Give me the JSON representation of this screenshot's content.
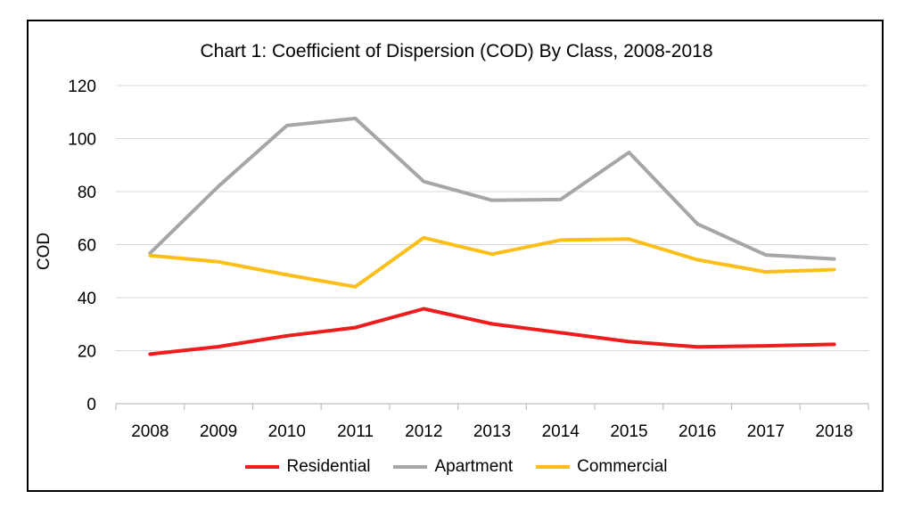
{
  "chart_data": {
    "type": "line",
    "title": "Chart 1:  Coefficient of Dispersion (COD) By Class, 2008-2018",
    "xlabel": "",
    "ylabel": "COD",
    "ylim": [
      0,
      120
    ],
    "yticks": [
      0,
      20,
      40,
      60,
      80,
      100,
      120
    ],
    "grid": true,
    "legend_position": "bottom",
    "categories": [
      "2008",
      "2009",
      "2010",
      "2011",
      "2012",
      "2013",
      "2014",
      "2015",
      "2016",
      "2017",
      "2018"
    ],
    "series": [
      {
        "name": "Residential",
        "color": "#ee1c1c",
        "values": [
          18.7,
          21.5,
          25.6,
          28.7,
          35.8,
          30.1,
          26.8,
          23.4,
          21.4,
          21.8,
          22.4
        ]
      },
      {
        "name": "Apartment",
        "color": "#a6a6a6",
        "values": [
          56.8,
          82.0,
          104.9,
          107.6,
          83.8,
          76.7,
          77.0,
          94.8,
          67.8,
          56.1,
          54.6
        ]
      },
      {
        "name": "Commercial",
        "color": "#fcbf1a",
        "values": [
          55.9,
          53.5,
          48.6,
          44.1,
          62.6,
          56.4,
          61.7,
          62.1,
          54.3,
          49.7,
          50.6
        ]
      }
    ]
  }
}
